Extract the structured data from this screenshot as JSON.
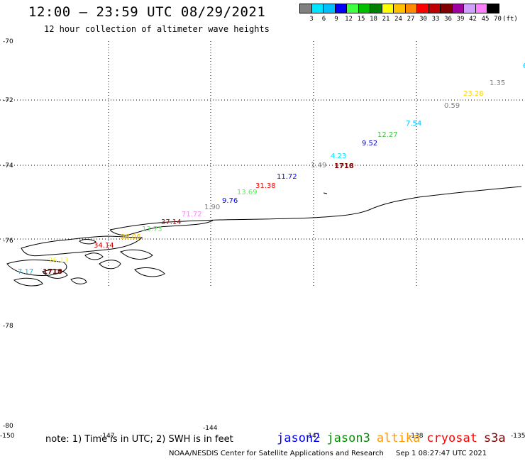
{
  "header": {
    "title": "12:00 – 23:59 UTC 08/29/2021",
    "subtitle": "12 hour collection of altimeter wave heights"
  },
  "colorbar": {
    "colors": [
      "#808080",
      "#00e5ff",
      "#00bfff",
      "#0000ff",
      "#40ff40",
      "#00c000",
      "#008000",
      "#ffff00",
      "#ffc000",
      "#ff8c00",
      "#ff0000",
      "#c00000",
      "#800000",
      "#a000a0",
      "#d0a0ff",
      "#ff80ff",
      "#000000"
    ],
    "labels": [
      "3",
      "6",
      "9",
      "12",
      "15",
      "18",
      "21",
      "24",
      "27",
      "30",
      "33",
      "36",
      "39",
      "42",
      "45",
      "70",
      "(ft)"
    ]
  },
  "map": {
    "lat_labels": [
      "-70",
      "-72",
      "-74",
      "-76",
      "-78",
      "-80"
    ],
    "lon_labels": [
      "-150",
      "-147",
      "-144",
      "-141",
      "-138",
      "-135"
    ],
    "wave_labels": [
      {
        "text": "6",
        "color": "#00bfff"
      },
      {
        "text": "1.35",
        "color": "#808080"
      },
      {
        "text": "23.28",
        "color": "#ffd700"
      },
      {
        "text": "0.59",
        "color": "#808080"
      },
      {
        "text": "7.54",
        "color": "#00bfff"
      },
      {
        "text": "12.27",
        "color": "#40c040"
      },
      {
        "text": "9.52",
        "color": "#0000c0"
      },
      {
        "text": "4.23",
        "color": "#00e5ff"
      },
      {
        "text": "1.49",
        "color": "#808080"
      },
      {
        "text": "1718",
        "color": "#800000"
      },
      {
        "text": "11.72",
        "color": "#0000ff"
      },
      {
        "text": "31.38",
        "color": "#ff0000"
      },
      {
        "text": "13.69",
        "color": "#40ff40"
      },
      {
        "text": "9.76",
        "color": "#0000ff"
      },
      {
        "text": "1.90",
        "color": "#808080"
      },
      {
        "text": "71.72",
        "color": "#ff80ff"
      },
      {
        "text": "37.14",
        "color": "#c00000"
      },
      {
        "text": "13.73",
        "color": "#40ff40"
      },
      {
        "text": "26.06",
        "color": "#ffc000"
      },
      {
        "text": "34.14",
        "color": "#c00000"
      },
      {
        "text": "26.13",
        "color": "#ffff00"
      },
      {
        "text": "7.17",
        "color": "#00bfff"
      },
      {
        "text": "1718",
        "color": "#800000"
      }
    ]
  },
  "footer": {
    "note": "note: 1) Time is in UTC; 2) SWH is in feet",
    "missions": [
      {
        "name": "jason2",
        "color": "#0000ff"
      },
      {
        "name": "jason3",
        "color": "#009000"
      },
      {
        "name": "altika",
        "color": "#ff9900"
      },
      {
        "name": "cryosat",
        "color": "#ff0000"
      },
      {
        "name": "s3a",
        "color": "#800000"
      }
    ],
    "credit_org": "NOAA/NESDIS Center for Satellite Applications and Research",
    "credit_time": "Sep  1 08:27:47 UTC 2021"
  }
}
